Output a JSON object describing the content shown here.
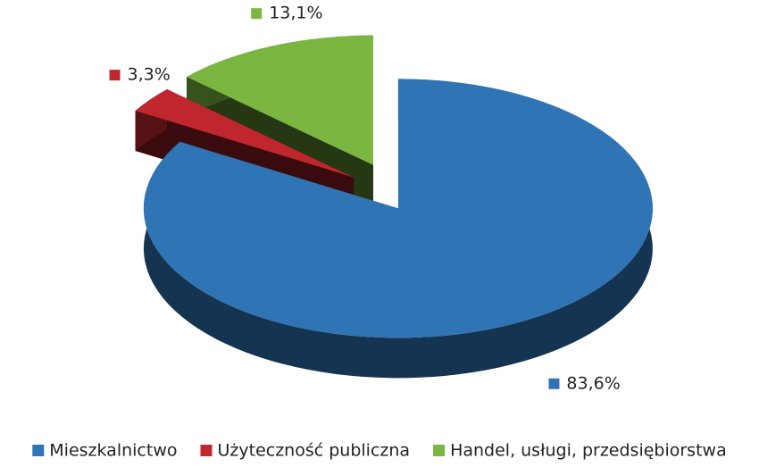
{
  "chart_data": {
    "type": "pie",
    "categories": [
      "Mieszkalnictwo",
      "Użyteczność publiczna",
      "Handel, usługi, przedsiębiorstwa"
    ],
    "values": [
      83.6,
      3.3,
      13.1
    ],
    "value_labels": [
      "83,6%",
      "3,3%",
      "13,1%"
    ],
    "colors": [
      "#2f74b5",
      "#c0262d",
      "#7ab640"
    ],
    "legend": "bottom"
  }
}
